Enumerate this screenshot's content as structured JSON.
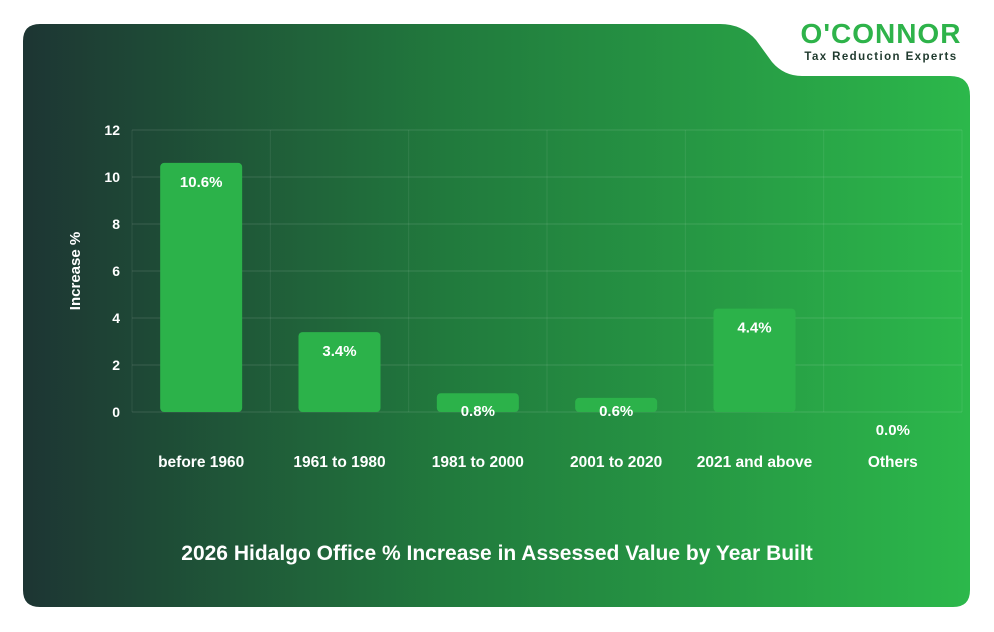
{
  "brand": {
    "name": "O'CONNOR",
    "tagline": "Tax Reduction Experts",
    "primary_color": "#2eb34a"
  },
  "colors": {
    "bar": "#2cb24a",
    "background_dark": "#1e3a34",
    "background_light": "#2db64b"
  },
  "chart_data": {
    "type": "bar",
    "title": "2026 Hidalgo Office % Increase in Assessed Value by Year Built",
    "xlabel": "",
    "ylabel": "Increase %",
    "ylim": [
      0,
      12
    ],
    "yticks": [
      0,
      2,
      4,
      6,
      8,
      10,
      12
    ],
    "grid": true,
    "legend": "none",
    "categories": [
      "before 1960",
      "1961 to 1980",
      "1981 to 2000",
      "2001 to 2020",
      "2021 and above",
      "Others"
    ],
    "values": [
      10.6,
      3.4,
      0.8,
      0.6,
      4.4,
      0.0
    ],
    "data_labels": [
      "10.6%",
      "3.4%",
      "0.8%",
      "0.6%",
      "4.4%",
      "0.0%"
    ]
  }
}
